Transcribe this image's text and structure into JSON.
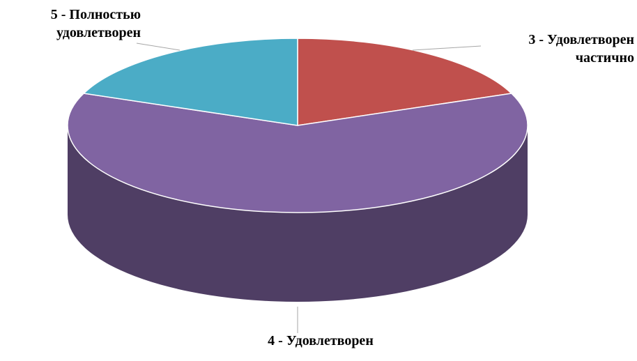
{
  "chart_data": {
    "type": "pie",
    "categories": [
      "3 - Удовлетворен частично",
      "4 - Удовлетворен",
      "5 - Полностью удовлетворен"
    ],
    "values": [
      19,
      62,
      19
    ],
    "colors": [
      "#c0504d",
      "#8064a2",
      "#4bacc6"
    ]
  }
}
